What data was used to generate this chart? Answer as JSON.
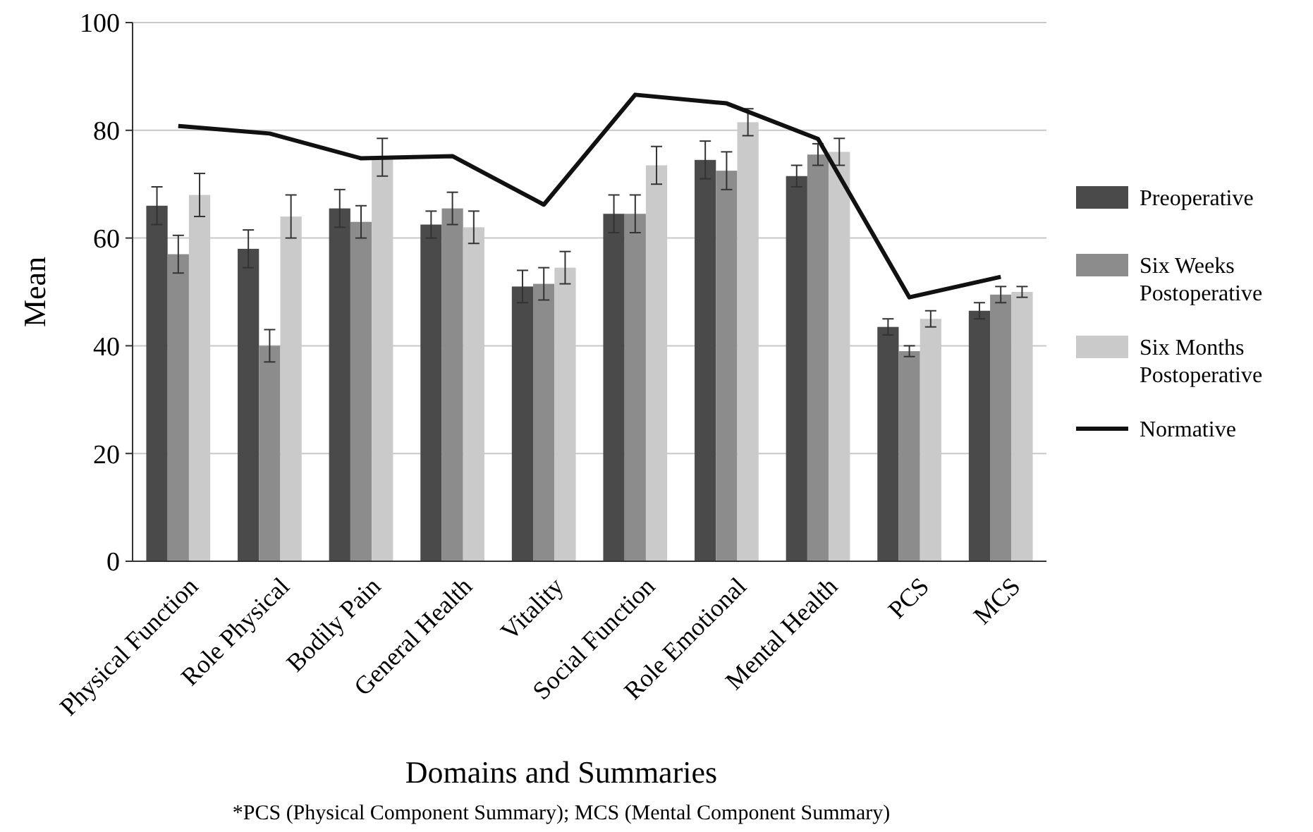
{
  "chart_data": {
    "type": "bar",
    "ylabel": "Mean",
    "xlabel": "Domains and Summaries",
    "annotations": [
      "*PCS (Physical Component Summary); MCS (Mental Component Summary)"
    ],
    "categories": [
      "Physical Function",
      "Role Physical",
      "Bodily Pain",
      "General Health",
      "Vitality",
      "Social Function",
      "Role Emotional",
      "Mental Health",
      "PCS",
      "MCS"
    ],
    "series": [
      {
        "name": "Preoperative",
        "color": "#4a4a4a",
        "values": [
          66,
          58,
          65.5,
          62.5,
          51,
          64.5,
          74.5,
          71.5,
          43.5,
          46.5
        ],
        "errors": [
          3.5,
          3.5,
          3.5,
          2.5,
          3,
          3.5,
          3.5,
          2,
          1.5,
          1.5
        ]
      },
      {
        "name": "Six Weeks Postoperative",
        "color": "#8c8c8c",
        "values": [
          57,
          40,
          63,
          65.5,
          51.5,
          64.5,
          72.5,
          75.5,
          39,
          49.5
        ],
        "errors": [
          3.5,
          3,
          3,
          3,
          3,
          3.5,
          3.5,
          2,
          1,
          1.5
        ]
      },
      {
        "name": "Six Months Postoperative",
        "color": "#cacaca",
        "values": [
          68,
          64,
          75,
          62,
          54.5,
          73.5,
          81.5,
          76,
          45,
          50
        ],
        "errors": [
          4,
          4,
          3.5,
          3,
          3,
          3.5,
          2.5,
          2.5,
          1.5,
          1
        ]
      },
      {
        "name": "Normative",
        "type": "line",
        "color": "#111111",
        "values": [
          80.8,
          79.4,
          74.8,
          75.2,
          66.2,
          86.6,
          85,
          78.4,
          49,
          52.8
        ]
      }
    ],
    "ylim": [
      0,
      100
    ],
    "yticks": [
      0,
      20,
      40,
      60,
      80,
      100
    ],
    "grid": "y",
    "legend": "right",
    "marker": "none"
  }
}
